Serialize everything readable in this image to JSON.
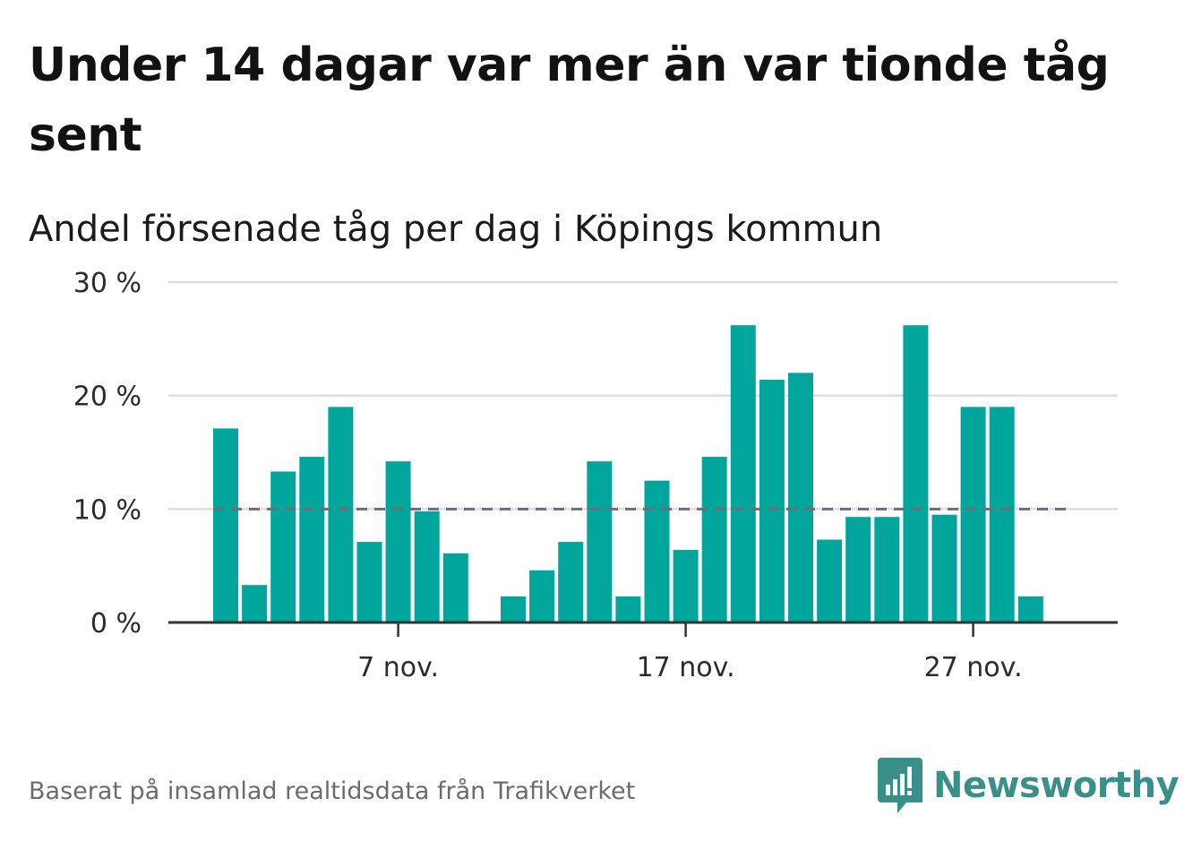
{
  "header": {
    "title": "Under 14 dagar var mer än var tionde tåg sent",
    "subtitle": "Andel försenade tåg per dag i Köpings kommun"
  },
  "footer": {
    "source": "Baserat på insamlad realtidsdata från Trafikverket",
    "brand": "Newsworthy"
  },
  "colors": {
    "bar": "#00a69c",
    "reference_line": "#6e6e78",
    "grid": "#dddddd",
    "axis": "#333333",
    "brand": "#3a8f88"
  },
  "chart_data": {
    "type": "bar",
    "x": [
      "1 nov.",
      "2 nov.",
      "3 nov.",
      "4 nov.",
      "5 nov.",
      "6 nov.",
      "7 nov.",
      "8 nov.",
      "9 nov.",
      "10 nov.",
      "11 nov.",
      "12 nov.",
      "13 nov.",
      "14 nov.",
      "15 nov.",
      "16 nov.",
      "17 nov.",
      "18 nov.",
      "19 nov.",
      "20 nov.",
      "21 nov.",
      "22 nov.",
      "23 nov.",
      "24 nov.",
      "25 nov.",
      "26 nov.",
      "27 nov.",
      "28 nov.",
      "29 nov.",
      "30 nov."
    ],
    "values": [
      17.1,
      3.3,
      13.3,
      14.6,
      19.0,
      7.1,
      14.2,
      9.8,
      6.1,
      null,
      2.3,
      4.6,
      7.1,
      14.2,
      2.3,
      12.5,
      6.4,
      14.6,
      26.2,
      21.4,
      22.0,
      7.3,
      9.3,
      9.3,
      26.2,
      9.5,
      19.0,
      19.0,
      2.3,
      null
    ],
    "x_tick_labels": [
      "7 nov.",
      "17 nov.",
      "27 nov."
    ],
    "y_tick_labels": [
      "0 %",
      "10 %",
      "20 %",
      "30 %"
    ],
    "y_ticks": [
      0,
      10,
      20,
      30
    ],
    "ylim": [
      0,
      30
    ],
    "reference_line": 10,
    "grid": true,
    "legend": "none"
  }
}
